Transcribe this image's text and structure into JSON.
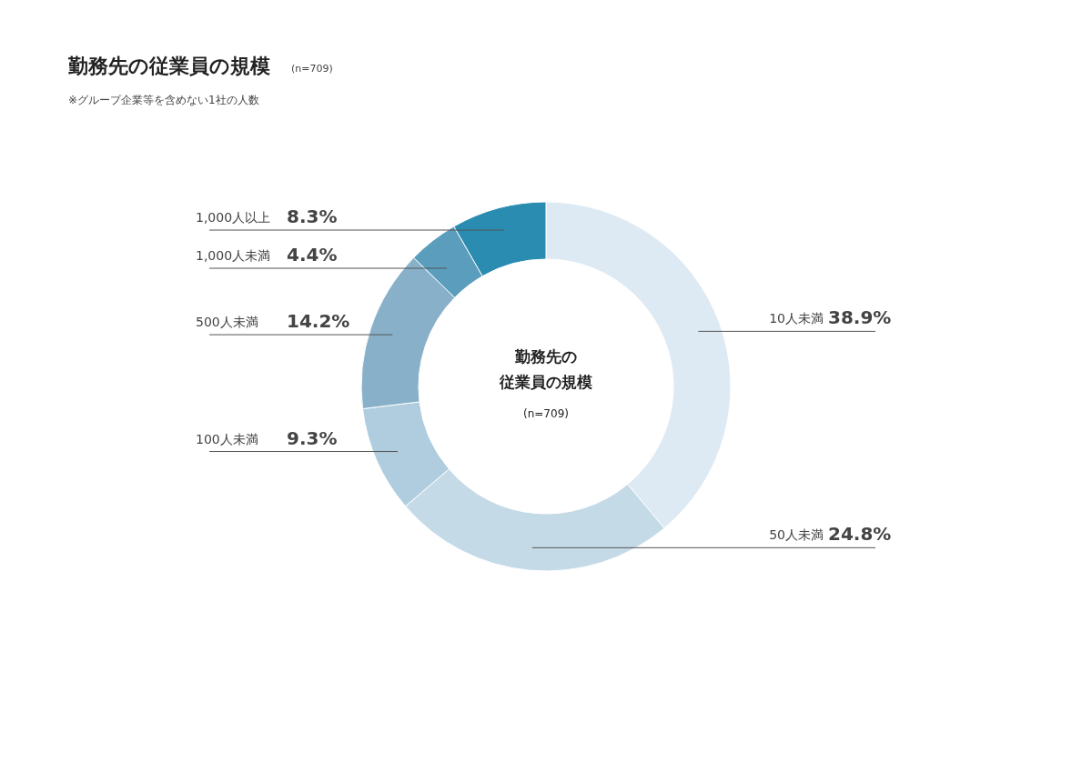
{
  "chart_data": {
    "type": "donut",
    "title": "勤務先の従業員の規模",
    "subtitle": "(n=709)",
    "annotations": [
      "※グループ企業等を含めない1社の人数",
      "勤務先の",
      "従業員の規模",
      "(n=709)"
    ],
    "categories": [
      "10人未満",
      "50人未満",
      "100人未満",
      "500人未満",
      "1,000人未満",
      "1,000人以上"
    ],
    "values": [
      38.9,
      24.8,
      9.3,
      14.2,
      4.4,
      8.3
    ],
    "value_labels": [
      "38.9%",
      "24.8%",
      "9.3%",
      "14.2%",
      "4.4%",
      "8.3%"
    ],
    "colors": [
      "#deeaf3",
      "#c5dae7",
      "#b0cddf",
      "#88b1c9",
      "#5a9dbd",
      "#2a8cb0"
    ]
  }
}
